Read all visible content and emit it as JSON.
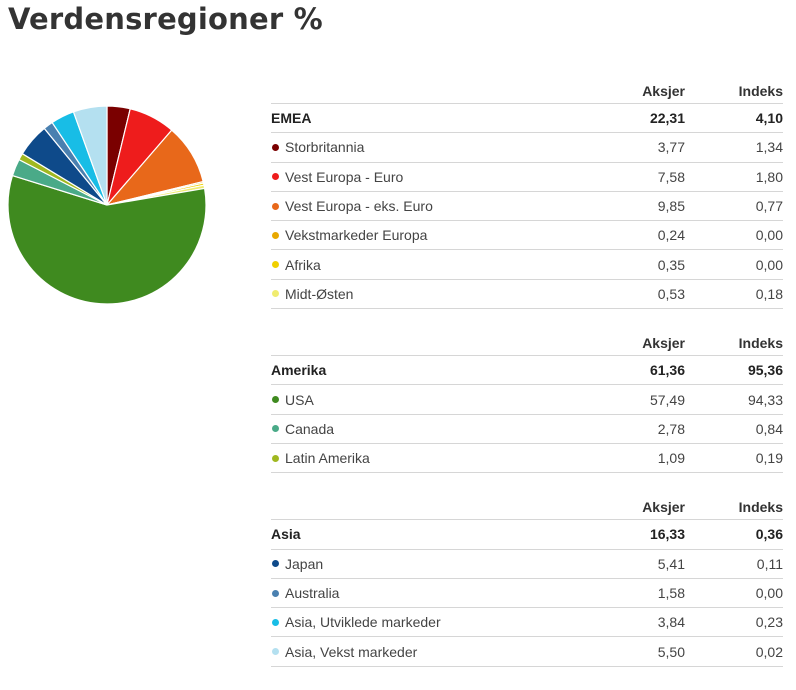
{
  "title": "Verdensregioner %",
  "columns": {
    "aksjer": "Aksjer",
    "indeks": "Indeks"
  },
  "chart_data": {
    "type": "pie",
    "title": "",
    "slices": [
      {
        "label": "Storbritannia",
        "value": 3.77,
        "color": "#7a0000"
      },
      {
        "label": "Vest Europa - Euro",
        "value": 7.58,
        "color": "#ee1c1c"
      },
      {
        "label": "Vest Europa - eks. Euro",
        "value": 9.85,
        "color": "#e8681a"
      },
      {
        "label": "Vekstmarkeder Europa",
        "value": 0.24,
        "color": "#e8a800"
      },
      {
        "label": "Afrika",
        "value": 0.35,
        "color": "#f0d000"
      },
      {
        "label": "Midt-Østen",
        "value": 0.53,
        "color": "#f0ec70"
      },
      {
        "label": "USA",
        "value": 57.49,
        "color": "#3f8a1f"
      },
      {
        "label": "Canada",
        "value": 2.78,
        "color": "#4aaa88"
      },
      {
        "label": "Latin Amerika",
        "value": 1.09,
        "color": "#a0b820"
      },
      {
        "label": "Japan",
        "value": 5.41,
        "color": "#0e4a8a"
      },
      {
        "label": "Australia",
        "value": 1.58,
        "color": "#4a80b0"
      },
      {
        "label": "Asia, Utviklede markeder",
        "value": 3.84,
        "color": "#18bde6"
      },
      {
        "label": "Asia, Vekst markeder",
        "value": 5.5,
        "color": "#b4e0f0"
      }
    ]
  },
  "groups": [
    {
      "name": "EMEA",
      "aksjer": "22,31",
      "indeks": "4,10",
      "rows": [
        {
          "name": "Storbritannia",
          "aksjer": "3,77",
          "indeks": "1,34",
          "color": "#7a0000"
        },
        {
          "name": "Vest Europa - Euro",
          "aksjer": "7,58",
          "indeks": "1,80",
          "color": "#ee1c1c"
        },
        {
          "name": "Vest Europa - eks. Euro",
          "aksjer": "9,85",
          "indeks": "0,77",
          "color": "#e8681a"
        },
        {
          "name": "Vekstmarkeder Europa",
          "aksjer": "0,24",
          "indeks": "0,00",
          "color": "#e8a800"
        },
        {
          "name": "Afrika",
          "aksjer": "0,35",
          "indeks": "0,00",
          "color": "#f0d000"
        },
        {
          "name": "Midt-Østen",
          "aksjer": "0,53",
          "indeks": "0,18",
          "color": "#f0ec70"
        }
      ]
    },
    {
      "name": "Amerika",
      "aksjer": "61,36",
      "indeks": "95,36",
      "rows": [
        {
          "name": "USA",
          "aksjer": "57,49",
          "indeks": "94,33",
          "color": "#3f8a1f"
        },
        {
          "name": "Canada",
          "aksjer": "2,78",
          "indeks": "0,84",
          "color": "#4aaa88"
        },
        {
          "name": "Latin Amerika",
          "aksjer": "1,09",
          "indeks": "0,19",
          "color": "#a0b820"
        }
      ]
    },
    {
      "name": "Asia",
      "aksjer": "16,33",
      "indeks": "0,36",
      "rows": [
        {
          "name": "Japan",
          "aksjer": "5,41",
          "indeks": "0,11",
          "color": "#0e4a8a"
        },
        {
          "name": "Australia",
          "aksjer": "1,58",
          "indeks": "0,00",
          "color": "#4a80b0"
        },
        {
          "name": "Asia, Utviklede markeder",
          "aksjer": "3,84",
          "indeks": "0,23",
          "color": "#18bde6"
        },
        {
          "name": "Asia, Vekst markeder",
          "aksjer": "5,50",
          "indeks": "0,02",
          "color": "#b4e0f0"
        }
      ]
    }
  ]
}
